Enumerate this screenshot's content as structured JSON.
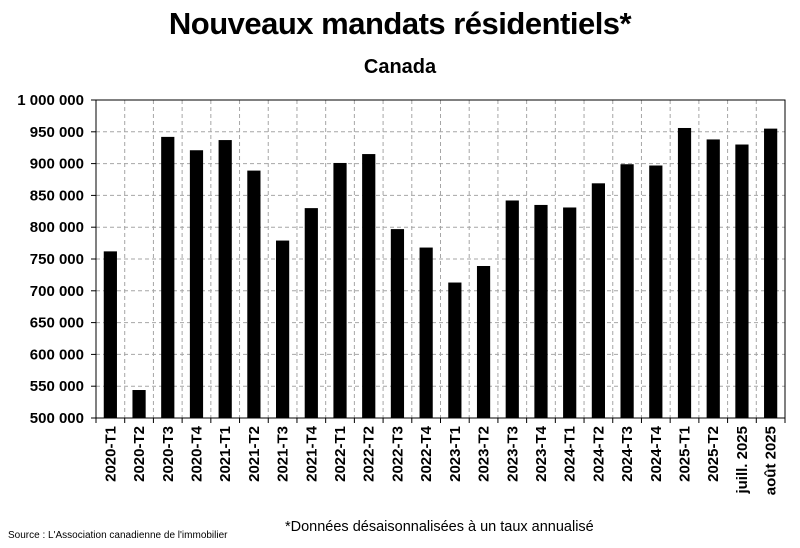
{
  "chart_data": {
    "type": "bar",
    "title": "Nouveaux mandats résidentiels*",
    "subtitle": "Canada",
    "xlabel": "",
    "ylabel": "",
    "ylim": [
      500000,
      1000000
    ],
    "ytick_values": [
      500000,
      550000,
      600000,
      650000,
      700000,
      750000,
      800000,
      850000,
      900000,
      950000,
      1000000
    ],
    "ytick_labels": [
      "500 000",
      "550 000",
      "600 000",
      "650 000",
      "700 000",
      "750 000",
      "800 000",
      "850 000",
      "900 000",
      "950 000",
      "1 000 000"
    ],
    "categories": [
      "2020-T1",
      "2020-T2",
      "2020-T3",
      "2020-T4",
      "2021-T1",
      "2021-T2",
      "2021-T3",
      "2021-T4",
      "2022-T1",
      "2022-T2",
      "2022-T3",
      "2022-T4",
      "2023-T1",
      "2023-T2",
      "2023-T3",
      "2023-T4",
      "2024-T1",
      "2024-T2",
      "2024-T3",
      "2024-T4",
      "2025-T1",
      "2025-T2",
      "juill. 2025",
      "août 2025"
    ],
    "values": [
      762000,
      544000,
      942000,
      921000,
      937000,
      889000,
      779000,
      830000,
      901000,
      915000,
      797000,
      768000,
      713000,
      739000,
      842000,
      835000,
      831000,
      869000,
      899000,
      897000,
      956000,
      938000,
      930000,
      955000
    ],
    "grid": true,
    "bar_color": "#000000",
    "grid_color": "#a6a6a6",
    "footnote": "*Données désaisonnalisées à un taux annualisé",
    "source": "Source : L'Association canadienne de l'immobilier"
  }
}
